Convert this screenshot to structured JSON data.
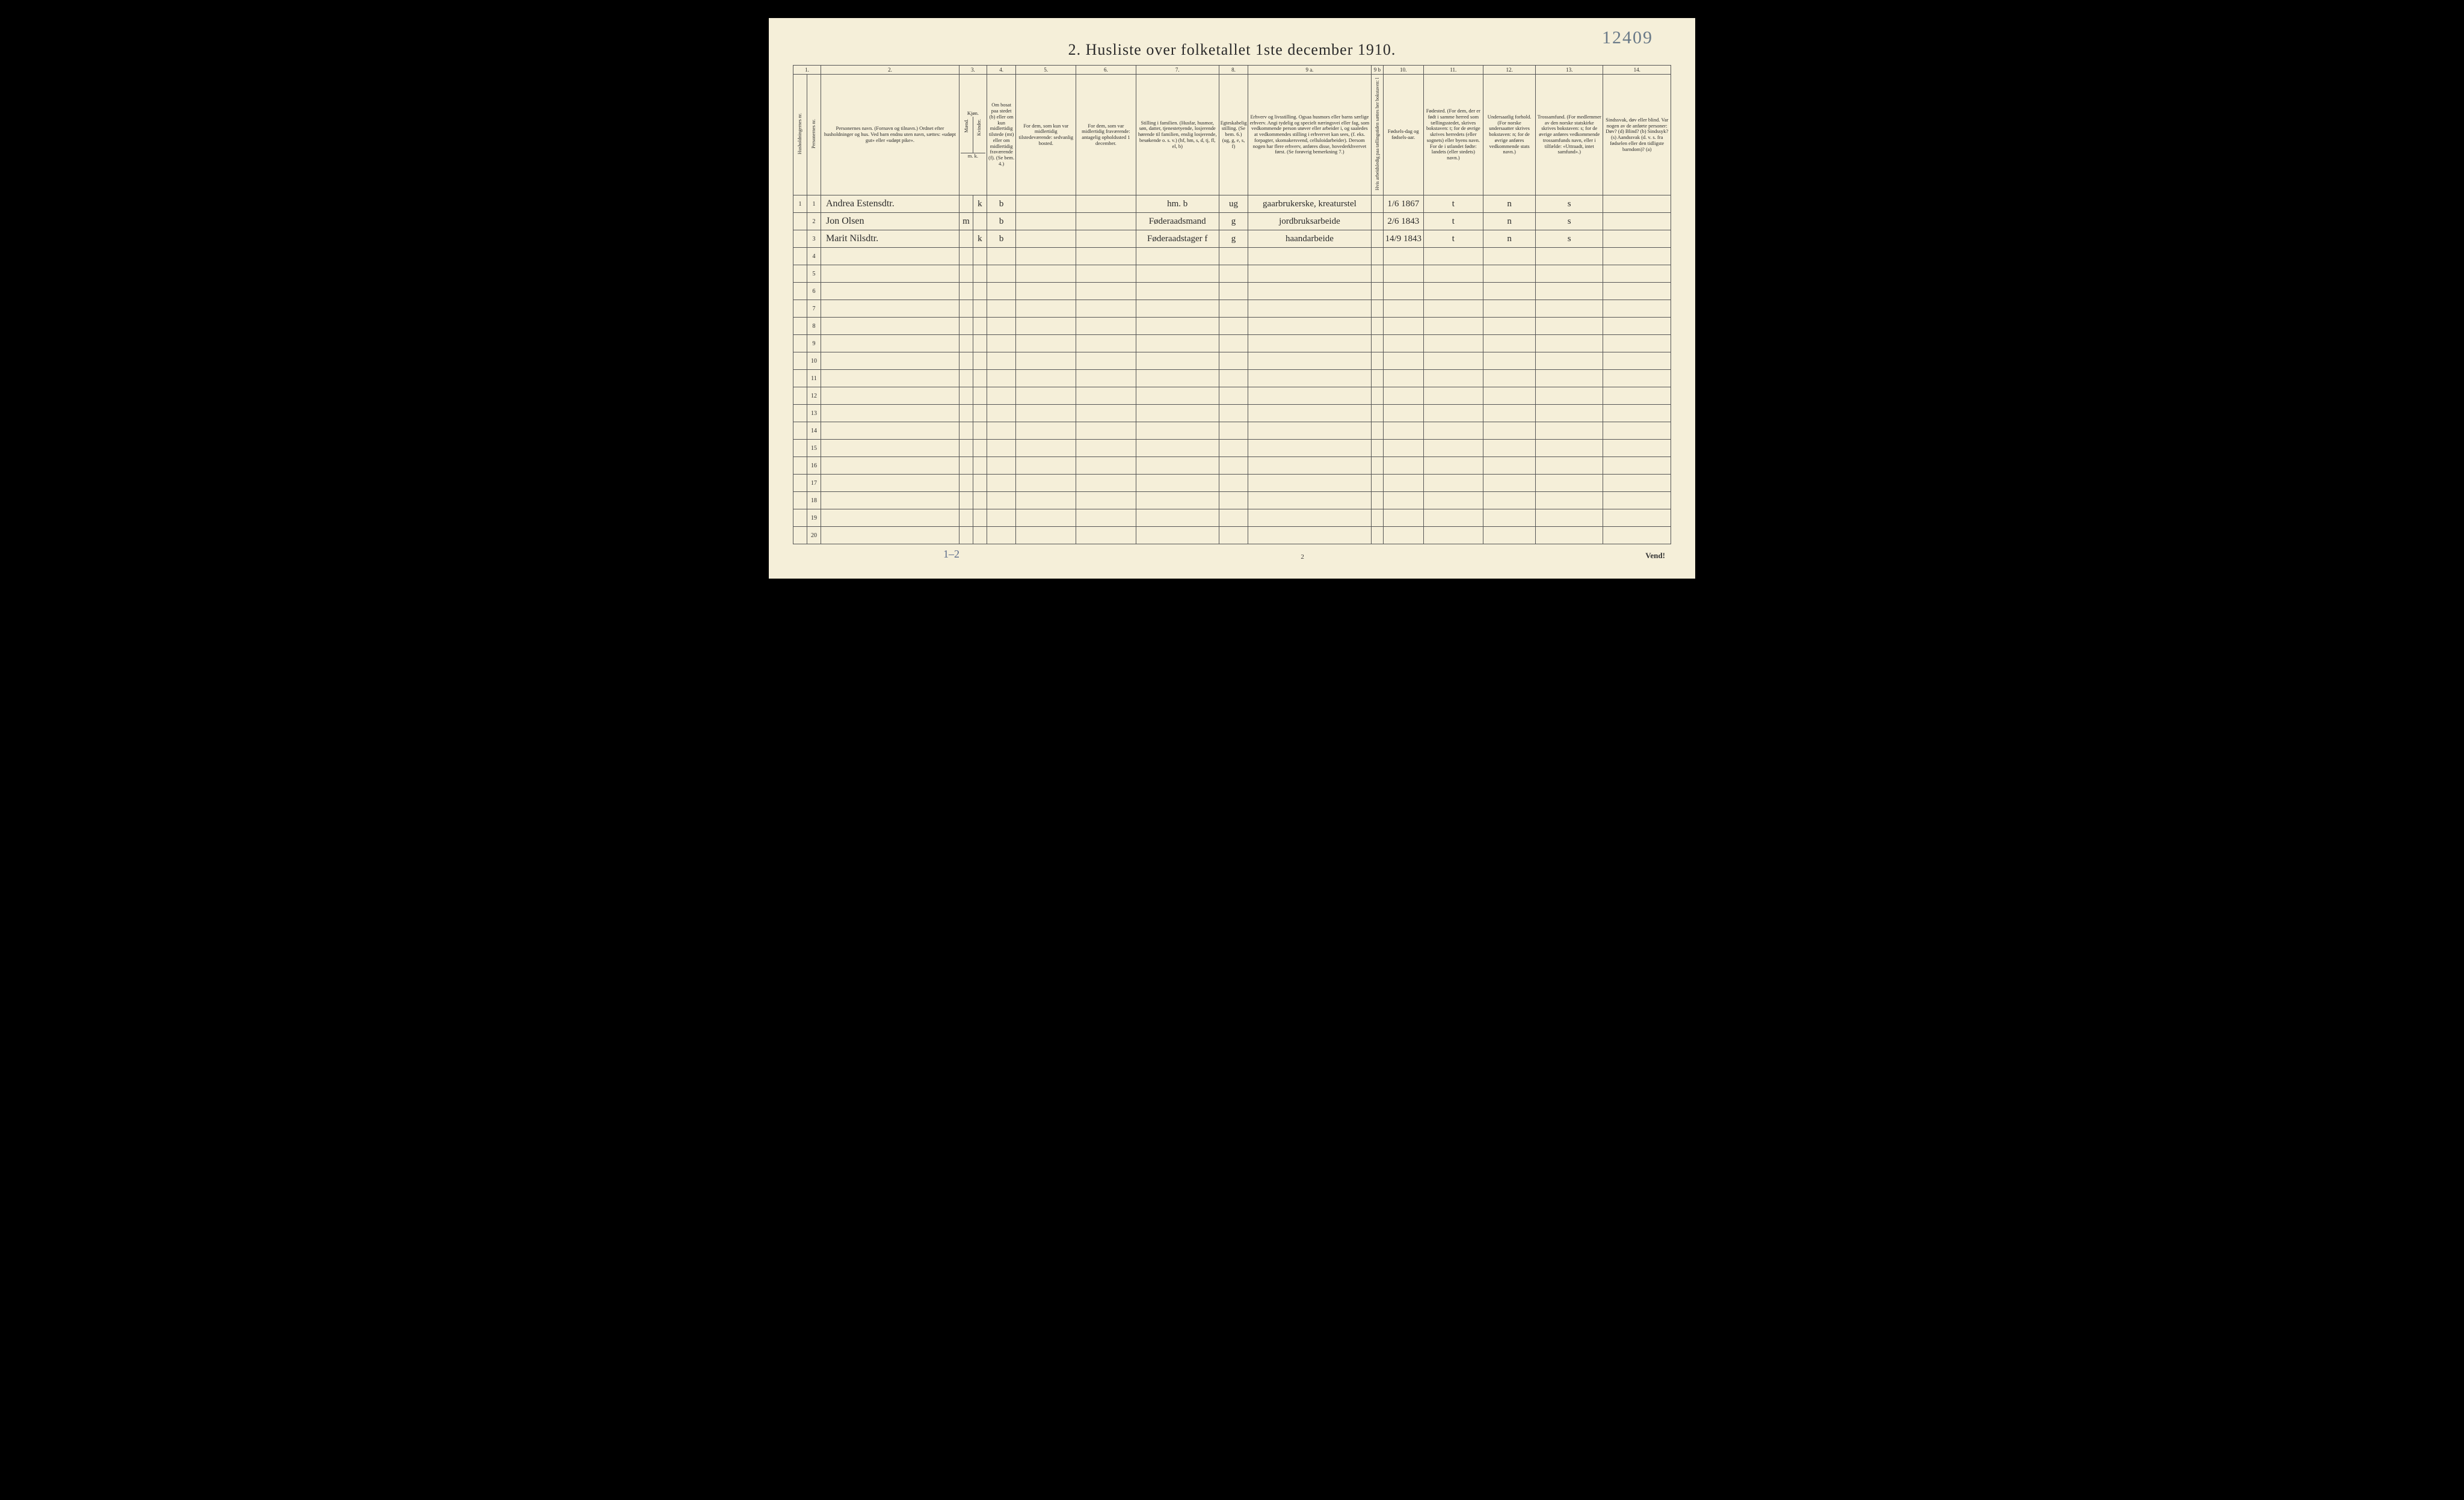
{
  "annotation_top_right": "12409",
  "title": "2.  Husliste over folketallet 1ste december 1910.",
  "header": {
    "colnums": [
      "1.",
      "2.",
      "3.",
      "4.",
      "5.",
      "6.",
      "7.",
      "8.",
      "9 a.",
      "9 b",
      "10.",
      "11.",
      "12.",
      "13.",
      "14."
    ],
    "hh_nr": "Husholdningernes nr.",
    "person_nr": "Personernes nr.",
    "names": "Personernes navn.\n(Fornavn og tilnavn.)\nOrdnet efter husholdninger og hus.\nVed barn endnu uten navn, sættes: «udøpt gut» eller «udøpt pike».",
    "kjon": "Kjøn.",
    "kjon_m": "Mænd.",
    "kjon_k": "Kvinder.",
    "kjon_mk": "m.  k.",
    "bosat": "Om bosat paa stedet (b) eller om kun midlertidig tilstede (mt) eller om midlertidig fraværende (f). (Se bem. 4.)",
    "midl_tilstede": "For dem, som kun var midlertidig tilstedeværende:\nsedvanlig bosted.",
    "midl_frav": "For dem, som var midlertidig fraværende:\nantagelig opholdssted 1 december.",
    "stilling_fam": "Stilling i familien.\n(Husfar, husmor, søn, datter, tjenestetyende, losjerende hørende til familien, enslig losjerende, besøkende o. s. v.)\n(hf, hm, s, d, tj, fl, el, b)",
    "egteskab": "Egteskabelig stilling. (Se bem. 6.)\n(ug, g, e, s, f)",
    "erhverv": "Erhverv og livsstilling.\nOgsaa husmors eller barns særlige erhverv. Angi tydelig og specielt næringsvei eller fag, som vedkommende person utøver eller arbeider i, og saaledes at vedkommendes stilling i erhvervet kan sees, (f. eks. forpagter, skomakersvend, celluloidarbeider). Dersom nogen har flere erhverv, anføres disse, hovederkhvervet først. (Se forøvrig bemerkning 7.)",
    "arbeidsledig": "Hvis arbeidsledig paa tællingstiden sættes her bokstaven: l",
    "fodsel": "Fødsels-dag og fødsels-aar.",
    "fodested": "Fødested.\n(For dem, der er født i samme herred som tællingsstedet, skrives bokstaven: t; for de øvrige skrives herredets (eller sognets) eller byens navn. For de i utlandet fødte: landets (eller stedets) navn.)",
    "undersaat": "Undersaatlig forhold.\n(For norske undersaatter skrives bokstaven: n; for de øvrige anføres vedkommende stats navn.)",
    "trossamfund": "Trossamfund.\n(For medlemmer av den norske statskirke skrives bokstaven: s; for de øvrige anføres vedkommende trossamfunds navn, eller i tilfælde: «Uttraadt, intet samfund».)",
    "sindssvak": "Sindssvak, døv eller blind.\nVar nogen av de anførte personer:\nDøv? (d)\nBlind? (b)\nSindssyk? (s)\nAandssvak (d. v. s. fra fødselen eller den tidligste barndom)? (a)"
  },
  "rows": [
    {
      "hh": "1",
      "pn": "1",
      "name": "Andrea Estensdtr.",
      "sex_m": "",
      "sex_k": "k",
      "bosat": "b",
      "temp": "",
      "abs": "",
      "fam": "hm.        b",
      "mar": "ug",
      "occ": "gaarbrukerske, kreaturstel",
      "arb": "",
      "dob": "1/6 1867",
      "bpl": "t",
      "nat": "n",
      "rel": "s",
      "dis": ""
    },
    {
      "hh": "",
      "pn": "2",
      "name": "Jon Olsen",
      "sex_m": "m",
      "sex_k": "",
      "bosat": "b",
      "temp": "",
      "abs": "",
      "fam": "Føderaadsmand",
      "mar": "g",
      "occ": "jordbruksarbeide",
      "arb": "",
      "dob": "2/6 1843",
      "bpl": "t",
      "nat": "n",
      "rel": "s",
      "dis": ""
    },
    {
      "hh": "",
      "pn": "3",
      "name": "Marit Nilsdtr.",
      "sex_m": "",
      "sex_k": "k",
      "bosat": "b",
      "temp": "",
      "abs": "",
      "fam": "Føderaadstager f",
      "mar": "g",
      "occ": "haandarbeide",
      "arb": "",
      "dob": "14/9 1843",
      "bpl": "t",
      "nat": "n",
      "rel": "s",
      "dis": ""
    }
  ],
  "total_rows": 20,
  "footer": {
    "left_note": "1–2",
    "page_number": "2",
    "vend": "Vend!"
  }
}
